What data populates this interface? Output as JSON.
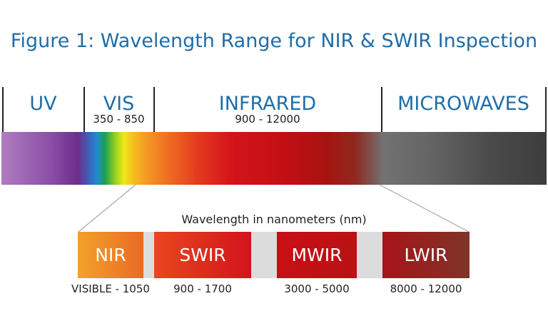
{
  "title": "Figure 1: Wavelength Range for NIR & SWIR Inspection",
  "bands": [
    {
      "label": "UV",
      "range": ""
    },
    {
      "label": "VIS",
      "range": "350 - 850"
    },
    {
      "label": "INFRARED",
      "range": "900 - 12000"
    },
    {
      "label": "MICROWAVES",
      "range": ""
    }
  ],
  "axis_caption": "Wavelength in nanometers (nm)",
  "infrared_bands": [
    {
      "label": "NIR",
      "range": "VISIBLE - 1050",
      "color_from": "#f2a22a",
      "color_to": "#e96a24"
    },
    {
      "label": "SWIR",
      "range": "900 - 1700",
      "color_from": "#e8471f",
      "color_to": "#d2141b"
    },
    {
      "label": "MWIR",
      "range": "3000 - 5000",
      "color_from": "#c90f16",
      "color_to": "#b81214"
    },
    {
      "label": "LWIR",
      "range": "8000 - 12000",
      "color_from": "#a8141a",
      "color_to": "#7e3428"
    }
  ]
}
